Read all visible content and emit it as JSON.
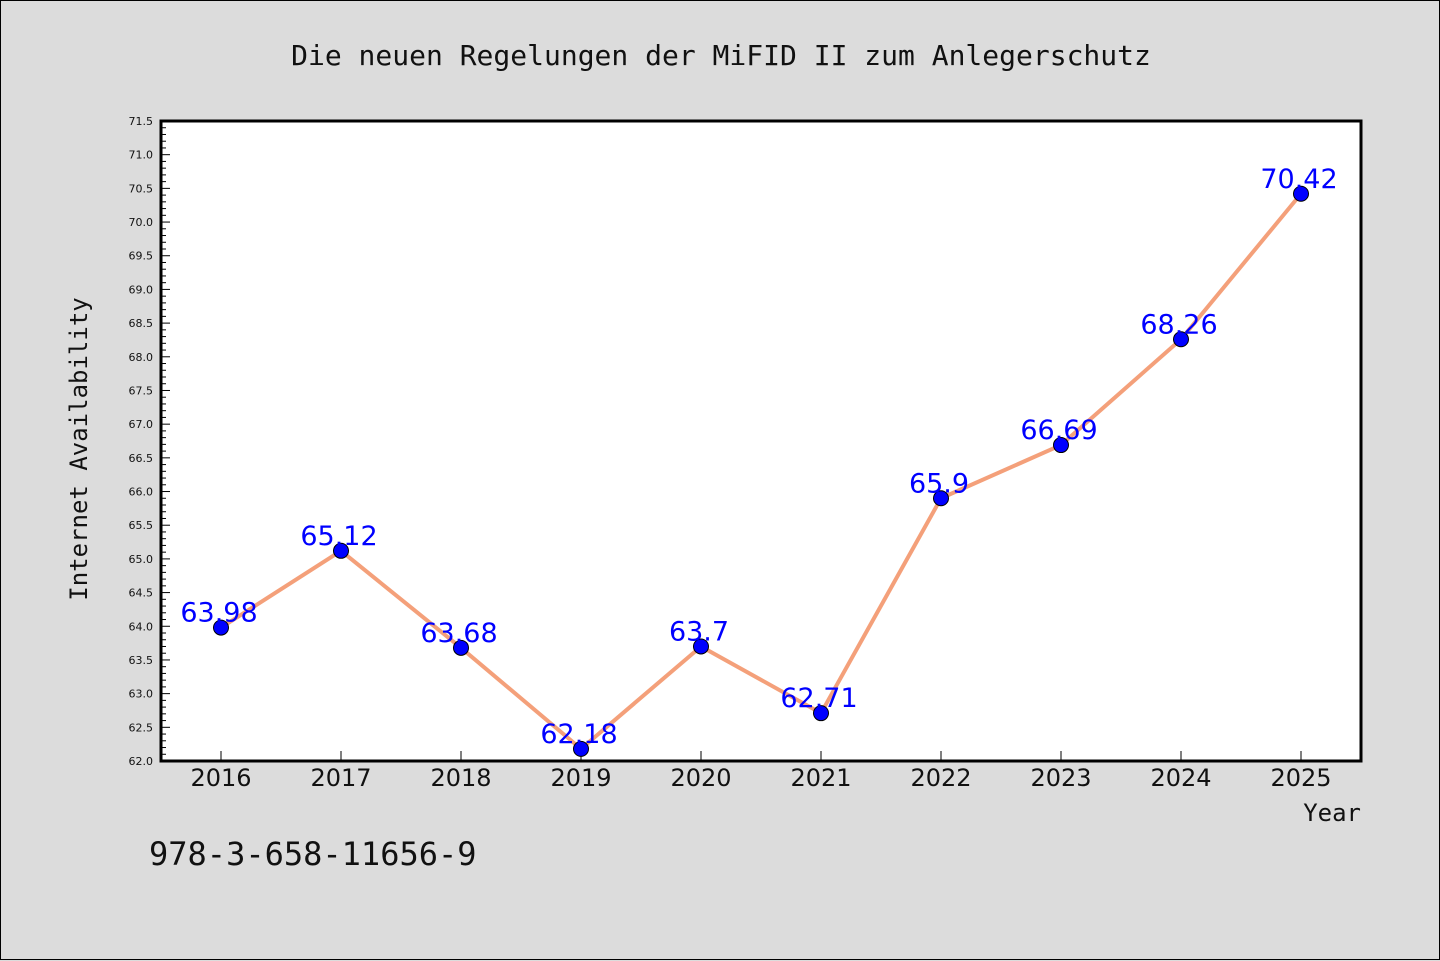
{
  "chart_data": {
    "type": "line",
    "title": "Die neuen Regelungen der MiFID II zum Anlegerschutz",
    "xlabel": "Year",
    "ylabel": "Internet Availability",
    "categories": [
      "2016",
      "2017",
      "2018",
      "2019",
      "2020",
      "2021",
      "2022",
      "2023",
      "2024",
      "2025"
    ],
    "series": [
      {
        "values": [
          63.98,
          65.12,
          63.68,
          62.18,
          63.7,
          62.71,
          65.9,
          66.69,
          68.26,
          70.42
        ],
        "line_color": "#f4a07a",
        "marker_color": "#0000ff"
      }
    ],
    "data_labels": [
      "63.98",
      "65.12",
      "63.68",
      "62.18",
      "63.7",
      "62.71",
      "65.9",
      "66.69",
      "68.26",
      "70.42"
    ],
    "ylim": [
      62.0,
      71.5
    ],
    "yticks": [
      "62.0",
      "62.5",
      "63.0",
      "63.5",
      "64.0",
      "64.5",
      "65.0",
      "65.5",
      "66.0",
      "66.5",
      "67.0",
      "67.5",
      "68.0",
      "68.5",
      "69.0",
      "69.5",
      "70.0",
      "70.5",
      "71.0",
      "71.5"
    ],
    "grid": false,
    "legend": "none",
    "plot_background": "#ffffff",
    "figure_background": "#dcdcdc"
  },
  "footer": {
    "isbn": "978-3-658-11656-9"
  }
}
